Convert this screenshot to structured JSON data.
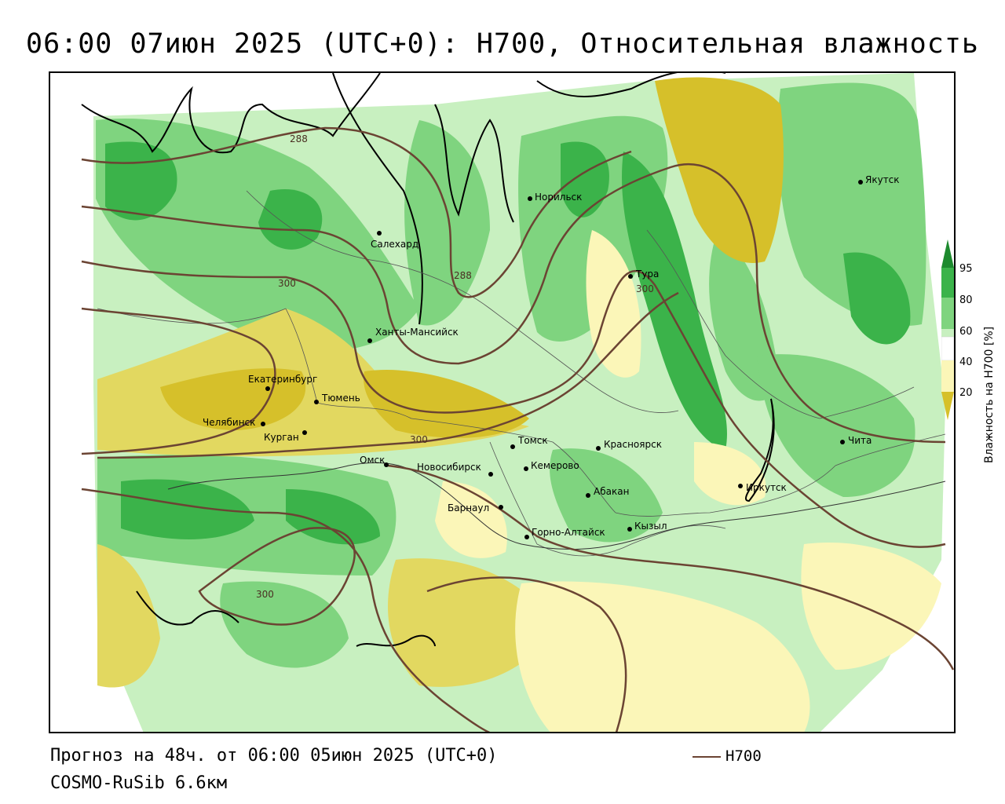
{
  "title": "06:00 07июн 2025 (UTC+0): H700, Относительная влажность",
  "footer": {
    "forecast": "Прогноз на 48ч. от 06:00 05июн 2025 (UTC+0)",
    "model": "COSMO-RuSib 6.6км",
    "legend_line_label": "H700"
  },
  "colorbar": {
    "title": "Влажность на H700 [%]",
    "ticks": [
      "95",
      "80",
      "60",
      "40",
      "20"
    ],
    "colors": {
      "very_dry": "#d6c02a",
      "dry": "#e2d860",
      "moderate_dry": "#fbf6b8",
      "neutral": "#ffffff",
      "moist": "#c8f0c0",
      "wet": "#7fd47f",
      "very_wet": "#3bb34a",
      "saturated": "#1d8a2e"
    }
  },
  "contours": {
    "color": "#6b4433",
    "labels": [
      "288",
      "300",
      "288",
      "300",
      "300",
      "300"
    ]
  },
  "cities": [
    {
      "name": "Норильск"
    },
    {
      "name": "Якутск"
    },
    {
      "name": "Салехард"
    },
    {
      "name": "Тура"
    },
    {
      "name": "Ханты-Мансийск"
    },
    {
      "name": "Екатеринбург"
    },
    {
      "name": "Тюмень"
    },
    {
      "name": "Челябинск"
    },
    {
      "name": "Курган"
    },
    {
      "name": "Омск"
    },
    {
      "name": "Новосибирск"
    },
    {
      "name": "Томск"
    },
    {
      "name": "Кемерово"
    },
    {
      "name": "Красноярск"
    },
    {
      "name": "Абакан"
    },
    {
      "name": "Барнаул"
    },
    {
      "name": "Горно-Алтайск"
    },
    {
      "name": "Кызыл"
    },
    {
      "name": "Иркутск"
    },
    {
      "name": "Чита"
    }
  ]
}
